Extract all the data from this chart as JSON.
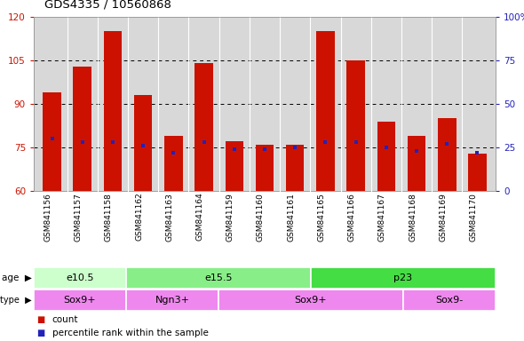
{
  "title": "GDS4335 / 10560868",
  "samples": [
    "GSM841156",
    "GSM841157",
    "GSM841158",
    "GSM841162",
    "GSM841163",
    "GSM841164",
    "GSM841159",
    "GSM841160",
    "GSM841161",
    "GSM841165",
    "GSM841166",
    "GSM841167",
    "GSM841168",
    "GSM841169",
    "GSM841170"
  ],
  "bar_values": [
    94,
    103,
    115,
    93,
    79,
    104,
    77,
    76,
    76,
    115,
    105,
    84,
    79,
    85,
    73
  ],
  "blue_pct": [
    30,
    28,
    28,
    26,
    22,
    28,
    24,
    24,
    25,
    28,
    28,
    25,
    23,
    27,
    22
  ],
  "ylim_left": [
    60,
    120
  ],
  "ylim_right": [
    0,
    100
  ],
  "yticks_left": [
    60,
    75,
    90,
    105,
    120
  ],
  "yticks_right": [
    0,
    25,
    50,
    75,
    100
  ],
  "bar_color": "#cc1100",
  "blue_color": "#2222bb",
  "age_groups": [
    {
      "label": "e10.5",
      "start": 0,
      "end": 3,
      "color": "#ccffcc"
    },
    {
      "label": "e15.5",
      "start": 3,
      "end": 9,
      "color": "#88ee88"
    },
    {
      "label": "p23",
      "start": 9,
      "end": 15,
      "color": "#44dd44"
    }
  ],
  "cell_type_groups": [
    {
      "label": "Sox9+",
      "start": 0,
      "end": 3
    },
    {
      "label": "Ngn3+",
      "start": 3,
      "end": 6
    },
    {
      "label": "Sox9+",
      "start": 6,
      "end": 12
    },
    {
      "label": "Sox9-",
      "start": 12,
      "end": 15
    }
  ],
  "cell_type_color": "#ee88ee",
  "plot_bg": "#d8d8d8",
  "white": "#ffffff"
}
